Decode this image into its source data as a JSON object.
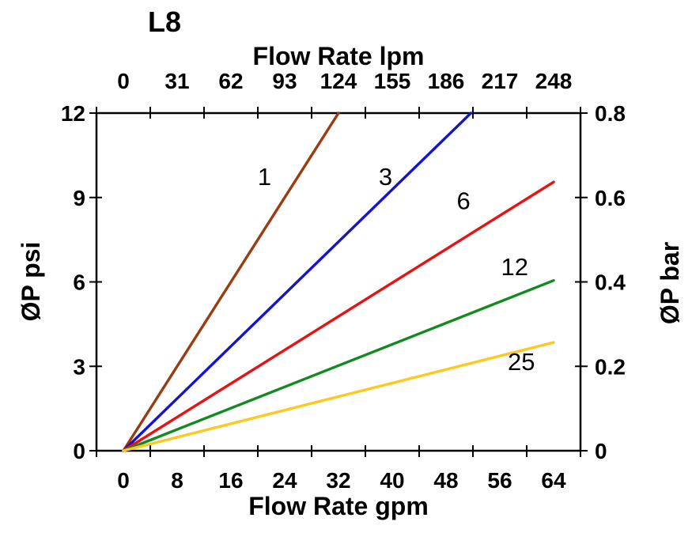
{
  "title": "L8",
  "chart_data": {
    "type": "line",
    "title": "L8",
    "top_axis": {
      "label": "Flow Rate lpm",
      "ticks": [
        "0",
        "31",
        "62",
        "93",
        "124",
        "155",
        "186",
        "217",
        "248"
      ]
    },
    "bottom_axis": {
      "label": "Flow Rate gpm",
      "ticks": [
        "0",
        "8",
        "16",
        "24",
        "32",
        "40",
        "48",
        "56",
        "64"
      ]
    },
    "left_axis": {
      "label": "ØP psi",
      "ticks": [
        "12",
        "9",
        "6",
        "3",
        "0"
      ],
      "range": [
        0,
        12
      ]
    },
    "right_axis": {
      "label": "ØP bar",
      "ticks": [
        "0.8",
        "0.6",
        "0.4",
        "0.2",
        "0"
      ],
      "range": [
        0,
        0.8
      ]
    },
    "x_range_gpm": [
      0,
      64
    ],
    "grid": false,
    "legend": "labels-on-lines",
    "axis_color": "#000000",
    "series": [
      {
        "label": "1",
        "color": "#9C3A10",
        "points_gpm_psi": [
          [
            0,
            0
          ],
          [
            32.0,
            12
          ]
        ],
        "label_at_gpm_psi": [
          21.0,
          9.75
        ]
      },
      {
        "label": "3",
        "color": "#1414CE",
        "points_gpm_psi": [
          [
            0,
            0
          ],
          [
            51.7,
            12
          ]
        ],
        "label_at_gpm_psi": [
          39.0,
          9.75
        ]
      },
      {
        "label": "6",
        "color": "#E91111",
        "points_gpm_psi": [
          [
            0,
            0
          ],
          [
            64,
            9.55
          ]
        ],
        "label_at_gpm_psi": [
          50.6,
          8.9
        ]
      },
      {
        "label": "12",
        "color": "#128A20",
        "points_gpm_psi": [
          [
            0,
            0
          ],
          [
            64,
            6.05
          ]
        ],
        "label_at_gpm_psi": [
          58.2,
          6.55
        ]
      },
      {
        "label": "25",
        "color": "#FFC81E",
        "points_gpm_psi": [
          [
            0,
            0
          ],
          [
            64,
            3.85
          ]
        ],
        "label_at_gpm_psi": [
          59.2,
          3.18
        ]
      }
    ]
  }
}
